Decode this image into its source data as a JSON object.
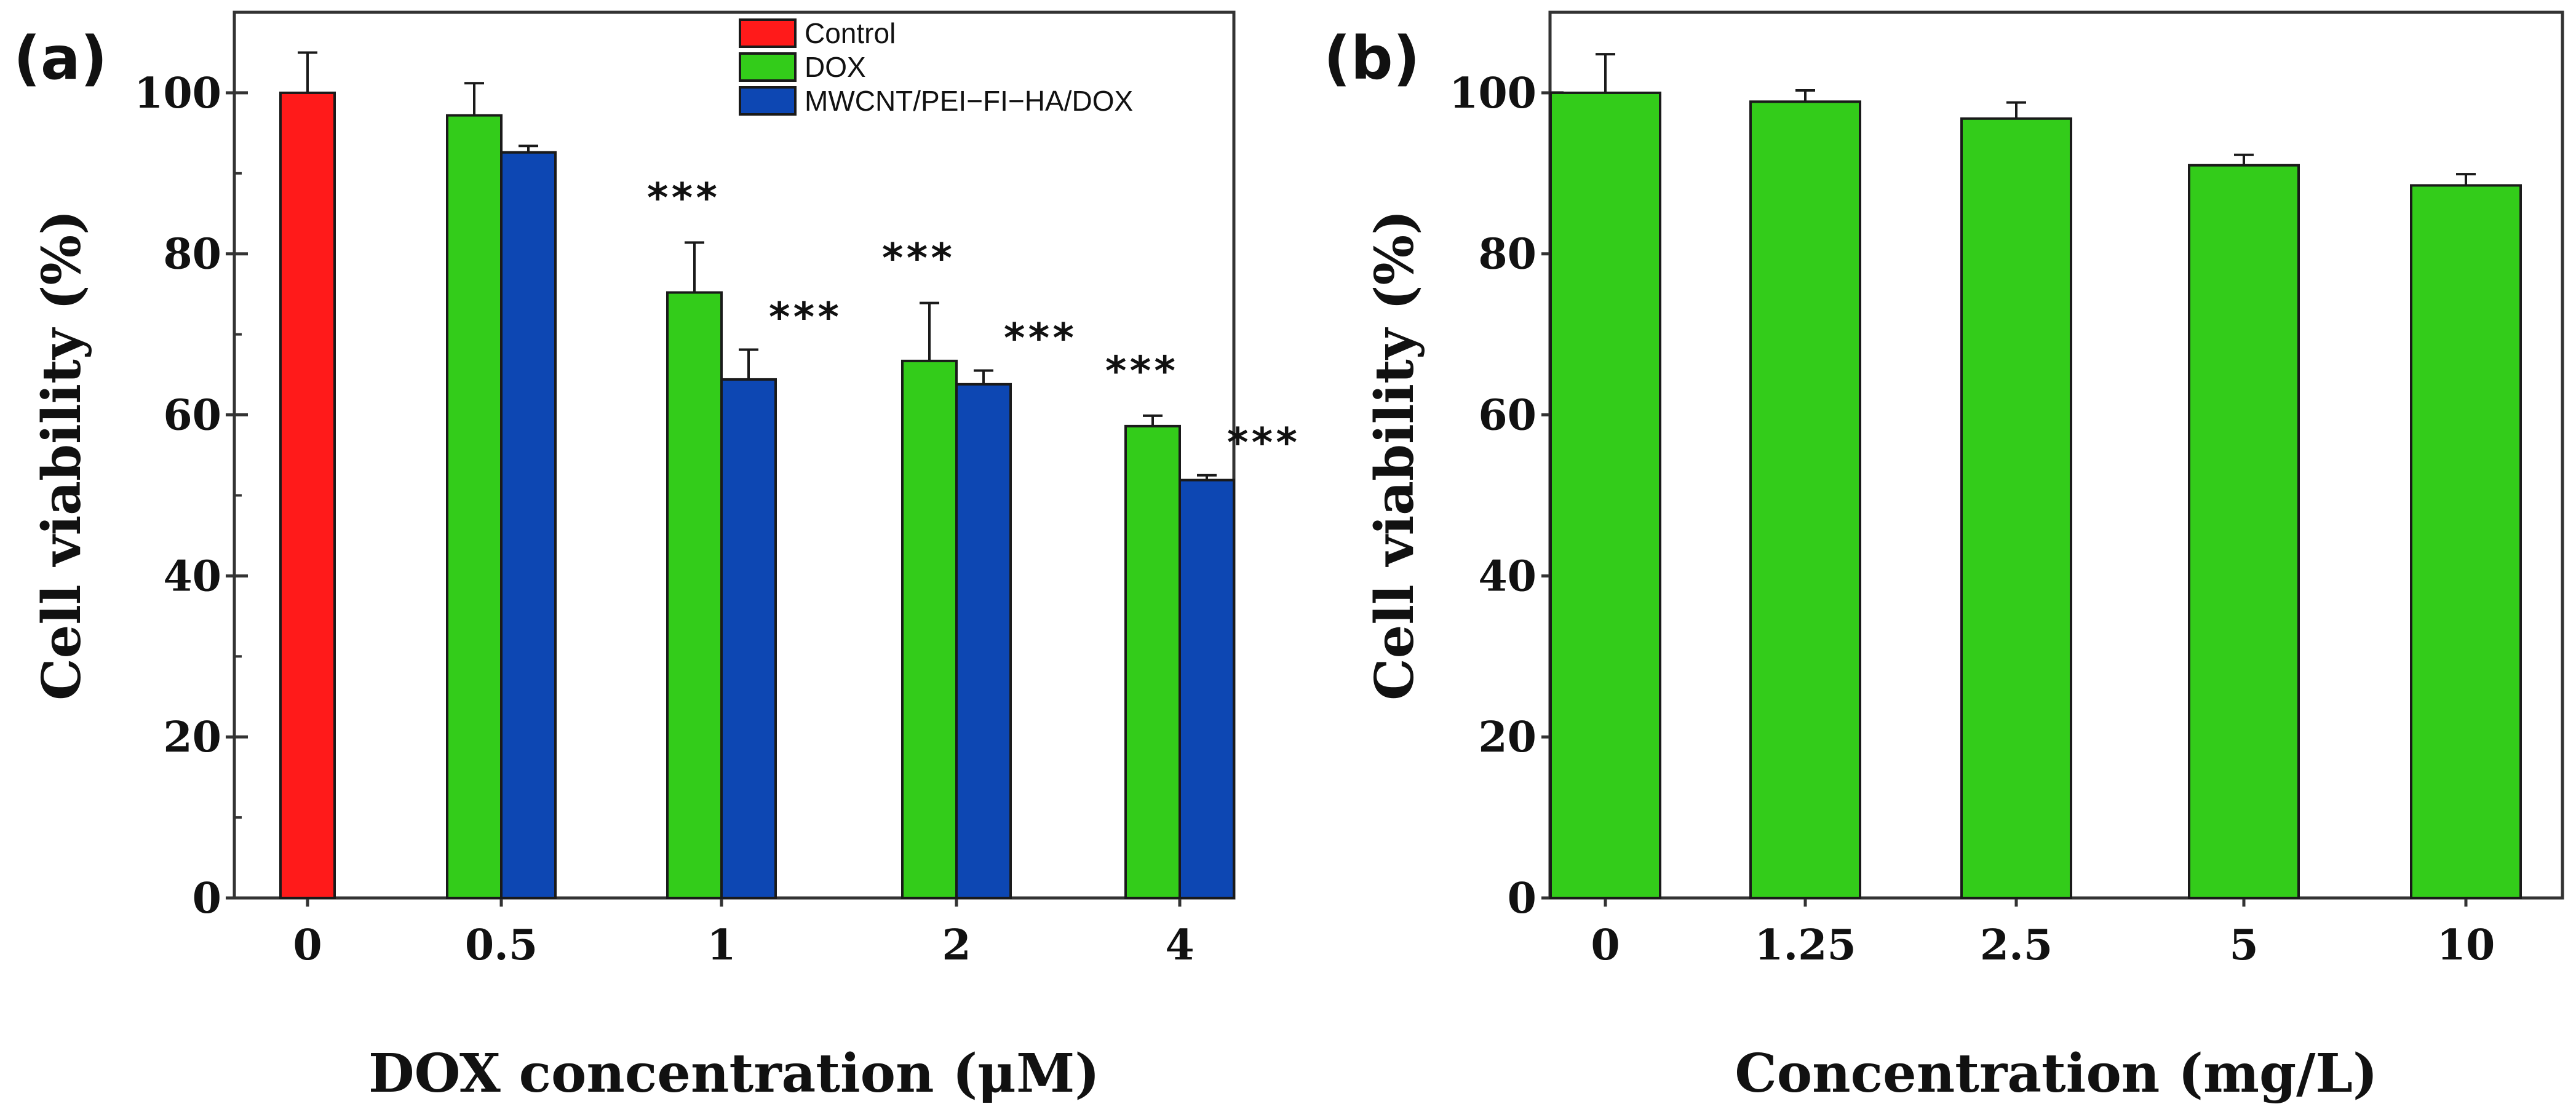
{
  "colors": {
    "control": "#ff1a1a",
    "dox": "#33cc1a",
    "composite": "#0d47b3",
    "frame": "#333333"
  },
  "chart_data": [
    {
      "type": "bar",
      "panel_label": "(a)",
      "categories": [
        "0",
        "0.5",
        "1",
        "2",
        "4"
      ],
      "xlabel": "DOX concentration (μM)",
      "ylabel": "Cell viability (%)",
      "ylim": [
        0,
        110
      ],
      "yticks": [
        "0",
        "20",
        "40",
        "60",
        "80",
        "100"
      ],
      "legend_position": "top-right",
      "series": [
        {
          "name": "Control",
          "color_key": "control",
          "values": [
            100,
            null,
            null,
            null,
            null
          ],
          "errors": [
            5,
            null,
            null,
            null,
            null
          ],
          "significance": [
            null,
            null,
            null,
            null,
            null
          ]
        },
        {
          "name": "DOX",
          "color_key": "dox",
          "values": [
            null,
            97.2,
            75.2,
            66.7,
            58.6
          ],
          "errors": [
            null,
            4,
            6.2,
            7.2,
            1.3
          ],
          "significance": [
            null,
            null,
            "***",
            "***",
            "***"
          ]
        },
        {
          "name": "MWCNT/PEI−FI−HA/DOX",
          "color_key": "composite",
          "values": [
            null,
            92.6,
            64.4,
            63.8,
            51.9
          ],
          "errors": [
            null,
            0.8,
            3.7,
            1.7,
            0.6
          ],
          "significance": [
            null,
            null,
            "***",
            "***",
            "***"
          ]
        }
      ]
    },
    {
      "type": "bar",
      "panel_label": "(b)",
      "categories": [
        "0",
        "1.25",
        "2.5",
        "5",
        "10"
      ],
      "xlabel": "Concentration (mg/L)",
      "ylabel": "Cell viability (%)",
      "ylim": [
        0,
        110
      ],
      "yticks": [
        "0",
        "20",
        "40",
        "60",
        "80",
        "100"
      ],
      "series": [
        {
          "color_key": "dox",
          "values": [
            100,
            98.9,
            96.8,
            91.0,
            88.5
          ],
          "errors": [
            4.8,
            1.4,
            2.0,
            1.3,
            1.4
          ]
        }
      ]
    }
  ]
}
